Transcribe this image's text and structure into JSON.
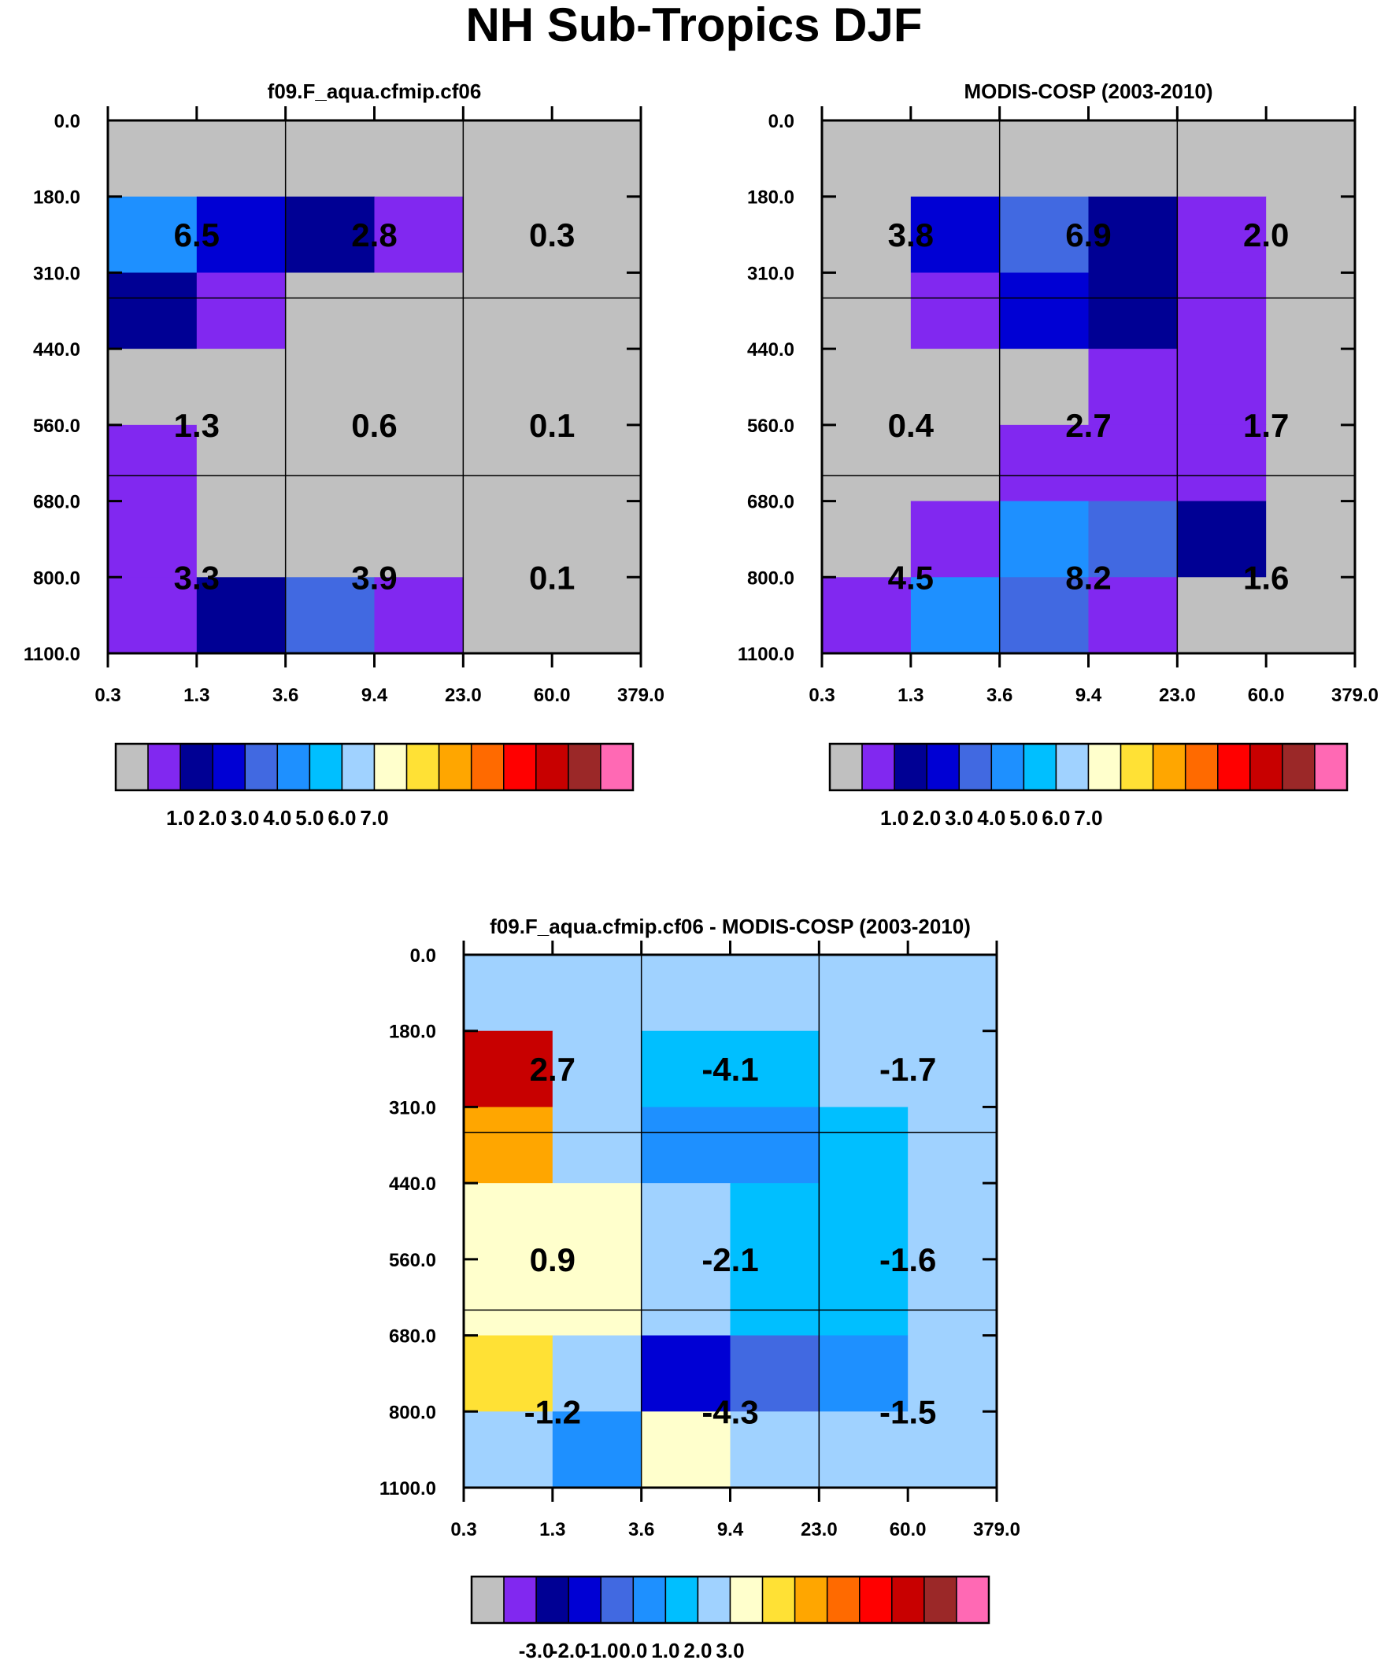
{
  "title": "NH Sub-Tropics DJF",
  "colors": [
    "#c0c0c0",
    "#8128f0",
    "#000094",
    "#0000d4",
    "#4169e1",
    "#1e90ff",
    "#00bfff",
    "#a0d2ff",
    "#ffffcc",
    "#ffe135",
    "#ffa600",
    "#ff6a00",
    "#ff0000",
    "#c80000",
    "#9b2828",
    "#ff69b4"
  ],
  "chart_data": [
    {
      "type": "heatmap",
      "title": "f09.F_aqua.cfmip.cf06",
      "x_ticks": [
        "0.3",
        "1.3",
        "3.6",
        "9.4",
        "23.0",
        "60.0",
        "379.0"
      ],
      "y_ticks": [
        "0.0",
        "180.0",
        "310.0",
        "440.0",
        "560.0",
        "680.0",
        "800.0",
        "1100.0"
      ],
      "cells": [
        [
          0,
          0,
          0,
          0,
          0,
          0
        ],
        [
          5,
          3,
          2,
          1,
          0,
          0
        ],
        [
          2,
          1,
          0,
          0,
          0,
          0
        ],
        [
          0,
          0,
          0,
          0,
          0,
          0
        ],
        [
          1,
          0,
          0,
          0,
          0,
          0
        ],
        [
          1,
          0,
          0,
          0,
          0,
          0
        ],
        [
          1,
          2,
          4,
          1,
          0,
          0
        ]
      ],
      "box_values": [
        [
          "6.5",
          "2.8",
          "0.3"
        ],
        [
          "1.3",
          "0.6",
          "0.1"
        ],
        [
          "3.3",
          "3.9",
          "0.1"
        ]
      ],
      "colorbar_labels": [
        "1.0",
        "2.0",
        "3.0",
        "4.0",
        "5.0",
        "6.0",
        "7.0"
      ]
    },
    {
      "type": "heatmap",
      "title": "MODIS-COSP (2003-2010)",
      "x_ticks": [
        "0.3",
        "1.3",
        "3.6",
        "9.4",
        "23.0",
        "60.0",
        "379.0"
      ],
      "y_ticks": [
        "0.0",
        "180.0",
        "310.0",
        "440.0",
        "560.0",
        "680.0",
        "800.0",
        "1100.0"
      ],
      "cells": [
        [
          0,
          0,
          0,
          0,
          0,
          0
        ],
        [
          0,
          3,
          4,
          2,
          1,
          0
        ],
        [
          0,
          1,
          3,
          2,
          1,
          0
        ],
        [
          0,
          0,
          0,
          1,
          1,
          0
        ],
        [
          0,
          0,
          1,
          1,
          1,
          0
        ],
        [
          0,
          1,
          5,
          4,
          2,
          0
        ],
        [
          1,
          5,
          4,
          1,
          0,
          0
        ]
      ],
      "box_values": [
        [
          "3.8",
          "6.9",
          "2.0"
        ],
        [
          "0.4",
          "2.7",
          "1.7"
        ],
        [
          "4.5",
          "8.2",
          "1.6"
        ]
      ],
      "colorbar_labels": [
        "1.0",
        "2.0",
        "3.0",
        "4.0",
        "5.0",
        "6.0",
        "7.0"
      ]
    },
    {
      "type": "heatmap",
      "title": "f09.F_aqua.cfmip.cf06 - MODIS-COSP (2003-2010)",
      "x_ticks": [
        "0.3",
        "1.3",
        "3.6",
        "9.4",
        "23.0",
        "60.0",
        "379.0"
      ],
      "y_ticks": [
        "0.0",
        "180.0",
        "310.0",
        "440.0",
        "560.0",
        "680.0",
        "800.0",
        "1100.0"
      ],
      "cells": [
        [
          7,
          7,
          7,
          7,
          7,
          7
        ],
        [
          13,
          7,
          6,
          6,
          7,
          7
        ],
        [
          10,
          7,
          5,
          5,
          6,
          7
        ],
        [
          8,
          8,
          7,
          6,
          6,
          7
        ],
        [
          8,
          8,
          7,
          6,
          6,
          7
        ],
        [
          9,
          7,
          3,
          4,
          5,
          7
        ],
        [
          7,
          5,
          8,
          7,
          7,
          7
        ]
      ],
      "box_values": [
        [
          "2.7",
          "-4.1",
          "-1.7"
        ],
        [
          "0.9",
          "-2.1",
          "-1.6"
        ],
        [
          "-1.2",
          "-4.3",
          "-1.5"
        ]
      ],
      "colorbar_labels": [
        "-3.0",
        "-2.0",
        "-1.0",
        "0.0",
        "1.0",
        "2.0",
        "3.0"
      ]
    }
  ]
}
